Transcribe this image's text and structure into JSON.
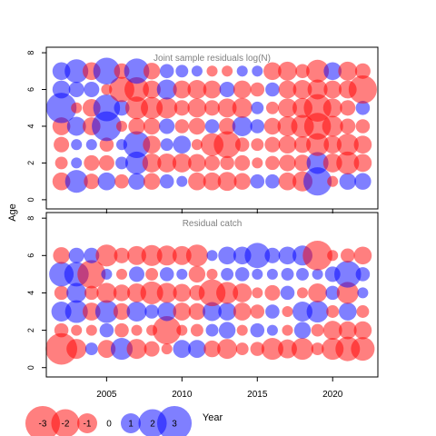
{
  "colors": {
    "positive": "#0000ff",
    "negative": "#ff0000",
    "panel_title": "#808080",
    "axis": "#000000"
  },
  "chart_data": [
    {
      "type": "bubble",
      "title": "Joint sample residuals log(N)",
      "xlabel": "Year",
      "ylabel": "Age",
      "xlim": [
        2001,
        2023
      ],
      "ylim": [
        -0.5,
        8.3
      ],
      "x_ticks": [
        2005,
        2010,
        2015,
        2020
      ],
      "y_ticks": [
        0,
        2,
        4,
        6,
        8
      ],
      "x_tick_labels_shown": false,
      "opacity": 0.5,
      "years": [
        2002,
        2003,
        2004,
        2005,
        2006,
        2007,
        2008,
        2009,
        2010,
        2011,
        2012,
        2013,
        2014,
        2015,
        2016,
        2017,
        2018,
        2019,
        2020,
        2021,
        2022
      ],
      "ages": [
        1,
        2,
        3,
        4,
        5,
        6,
        7
      ],
      "residuals": [
        [
          -0.8,
          1.3,
          -0.6,
          0.8,
          -0.5,
          0.7,
          -0.7,
          0.5,
          0.3,
          -0.8,
          -0.8,
          -0.9,
          -0.7,
          0.5,
          0.5,
          -0.8,
          -1.0,
          2.0,
          -0.3,
          0.7,
          0.7
        ],
        [
          -0.4,
          0.3,
          -0.6,
          -0.6,
          0.4,
          1.3,
          -0.9,
          -0.9,
          -0.9,
          -0.8,
          -0.6,
          -0.5,
          -0.6,
          -0.3,
          -0.5,
          -0.7,
          -0.7,
          1.2,
          -0.9,
          -1.3,
          -0.8
        ],
        [
          -0.6,
          0.3,
          0.3,
          -0.5,
          0.3,
          1.8,
          -0.8,
          0.4,
          0.8,
          -0.3,
          -1.3,
          -1.8,
          -0.5,
          -0.4,
          -0.6,
          -0.8,
          -0.7,
          -1.3,
          -0.8,
          -1.2,
          -0.8
        ],
        [
          -0.8,
          0.9,
          -0.8,
          2.2,
          -0.3,
          -0.7,
          -0.7,
          0.6,
          -0.5,
          -0.7,
          0.5,
          -0.7,
          1.0,
          0.5,
          -0.7,
          -1.0,
          -1.3,
          -1.8,
          -1.1,
          -0.6,
          -0.5
        ],
        [
          2.3,
          -0.3,
          -0.8,
          1.8,
          0.6,
          -1.3,
          -1.2,
          -1.1,
          -0.6,
          -0.9,
          -0.6,
          -0.9,
          -1.0,
          0.4,
          -0.4,
          -0.9,
          -1.0,
          -1.9,
          -0.9,
          -0.6,
          0.5
        ],
        [
          0.8,
          0.6,
          0.6,
          -0.3,
          -1.6,
          -1.5,
          -0.8,
          1.0,
          -0.8,
          -0.9,
          -0.8,
          0.6,
          -0.8,
          -0.5,
          0.5,
          -0.8,
          -0.9,
          -1.0,
          -0.8,
          -0.8,
          -2.0
        ],
        [
          0.8,
          1.4,
          -0.8,
          1.8,
          -0.6,
          1.6,
          -0.7,
          0.5,
          0.4,
          0.3,
          -0.3,
          -0.3,
          0.3,
          0.3,
          -0.8,
          -0.9,
          -0.5,
          -1.3,
          0.8,
          -0.9,
          -0.6
        ]
      ]
    },
    {
      "type": "bubble",
      "title": "Residual catch",
      "xlabel": "Year",
      "ylabel": "Age",
      "xlim": [
        2001,
        2023
      ],
      "ylim": [
        -0.5,
        8.3
      ],
      "x_ticks": [
        2005,
        2010,
        2015,
        2020
      ],
      "y_ticks": [
        0,
        2,
        4,
        6,
        8
      ],
      "opacity": 0.5,
      "years": [
        2002,
        2003,
        2004,
        2005,
        2006,
        2007,
        2008,
        2009,
        2010,
        2011,
        2012,
        2013,
        2014,
        2015,
        2016,
        2017,
        2018,
        2019,
        2020,
        2021,
        2022
      ],
      "ages": [
        1,
        2,
        3,
        4,
        5,
        6
      ],
      "residuals": [
        [
          -2.5,
          -1.0,
          0.4,
          -0.8,
          1.2,
          -1.0,
          -0.6,
          -0.3,
          0.8,
          0.8,
          -0.7,
          -1.0,
          -0.4,
          -0.5,
          -1.2,
          -0.9,
          -1.2,
          -0.4,
          -1.2,
          -1.5,
          -1.4
        ],
        [
          -0.5,
          -0.3,
          -0.3,
          0.5,
          -0.5,
          -0.3,
          -0.3,
          -2.0,
          -0.3,
          -0.4,
          0.4,
          0.7,
          -0.3,
          0.5,
          0.3,
          -0.3,
          0.7,
          -0.4,
          -0.9,
          -0.8,
          -0.8
        ],
        [
          1.0,
          1.3,
          -0.8,
          1.3,
          -0.7,
          1.0,
          0.5,
          0.9,
          -0.8,
          -0.7,
          0.9,
          0.8,
          -0.8,
          -0.5,
          0.5,
          -0.3,
          1.0,
          1.2,
          -0.4,
          0.8,
          -0.4
        ],
        [
          -0.5,
          1.0,
          -0.5,
          -1.0,
          -0.7,
          -0.9,
          -1.3,
          -1.0,
          -0.8,
          -0.6,
          -1.8,
          -1.2,
          -0.9,
          -0.3,
          -0.6,
          0.5,
          -0.3,
          -0.9,
          0.5,
          -1.2,
          0.3
        ],
        [
          1.5,
          1.5,
          -2.0,
          0.3,
          -0.3,
          0.6,
          -0.4,
          0.5,
          0.3,
          -0.7,
          -0.3,
          0.4,
          0.5,
          0.3,
          0.3,
          0.4,
          0.4,
          0.3,
          0.6,
          1.8,
          0.5
        ],
        [
          -0.7,
          0.6,
          0.6,
          -1.2,
          -0.6,
          -0.9,
          -1.1,
          -1.0,
          -0.9,
          -1.2,
          0.3,
          0.8,
          0.8,
          1.6,
          0.6,
          0.8,
          1.0,
          -2.2,
          -0.3,
          -0.5,
          -0.8
        ]
      ]
    }
  ],
  "legend": {
    "values": [
      "-3",
      "-2",
      "-1",
      "0",
      "1",
      "2",
      "3"
    ]
  },
  "labels": {
    "ylabel": "Age",
    "xlabel": "Year",
    "top_title": "Joint sample residuals log(N)",
    "bottom_title": "Residual catch"
  }
}
